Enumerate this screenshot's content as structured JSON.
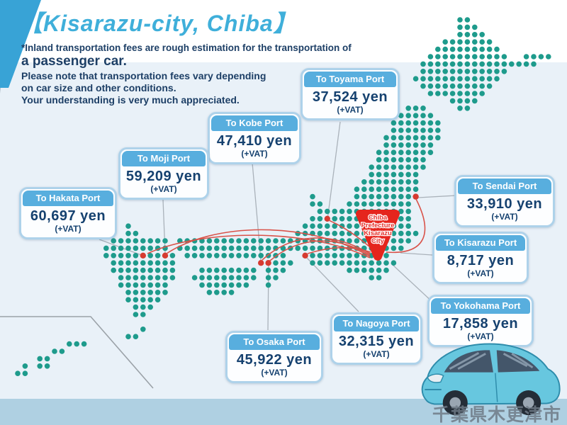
{
  "title": "【Kisarazu-city, Chiba】",
  "notes": {
    "line1": "*Inland transportation fees are rough estimation for the transportation of",
    "line2": "a passenger car.",
    "line3": "Please note that transportation fees vary depending",
    "line4": "on car size and other conditions.",
    "line5": "Your understanding is very much appreciated."
  },
  "origin_pin": {
    "line1": "Chiba",
    "line2": "Prefecture",
    "line3": "Kisarazu",
    "line4": "City"
  },
  "ports": [
    {
      "name": "Toyama",
      "label": "To Toyama Port",
      "price": "37,524 yen",
      "vat": "(+VAT)"
    },
    {
      "name": "Kobe",
      "label": "To Kobe Port",
      "price": "47,410 yen",
      "vat": "(+VAT)"
    },
    {
      "name": "Moji",
      "label": "To Moji Port",
      "price": "59,209 yen",
      "vat": "(+VAT)"
    },
    {
      "name": "Hakata",
      "label": "To Hakata Port",
      "price": "60,697 yen",
      "vat": "(+VAT)"
    },
    {
      "name": "Sendai",
      "label": "To Sendai Port",
      "price": "33,910 yen",
      "vat": "(+VAT)"
    },
    {
      "name": "Kisarazu",
      "label": "To Kisarazu Port",
      "price": "8,717 yen",
      "vat": "(+VAT)"
    },
    {
      "name": "Yokohama",
      "label": "To Yokohama Port",
      "price": "17,858 yen",
      "vat": "(+VAT)"
    },
    {
      "name": "Nagoya",
      "label": "To Nagoya Port",
      "price": "32,315 yen",
      "vat": "(+VAT)"
    },
    {
      "name": "Osaka",
      "label": "To Osaka Port",
      "price": "45,922 yen",
      "vat": "(+VAT)"
    }
  ],
  "watermark": "千葉県木更津市",
  "colors": {
    "accent_blue": "#3fafda",
    "header_blue": "#58aede",
    "navy_text": "#1d3f66",
    "dot_teal": "#1e9b8c",
    "port_dot_red": "#d63a30",
    "route_red": "#d95249",
    "pin_red": "#e5251d",
    "background": "#e9f1f8",
    "bottom_band": "#afd0e2",
    "car_body": "#67c7df"
  }
}
